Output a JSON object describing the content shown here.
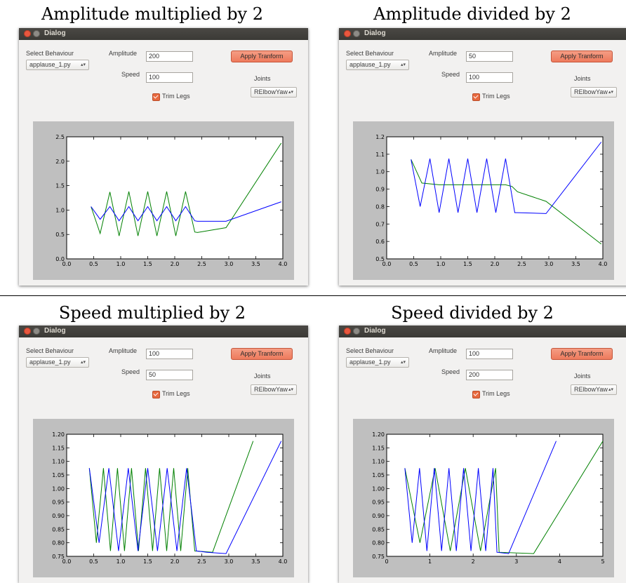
{
  "panels": [
    {
      "caption": "Amplitude multiplied by 2",
      "window_title": "Dialog",
      "select_behaviour_label": "Select Behaviour",
      "behaviour_value": "applause_1.py",
      "amplitude_label": "Amplitude",
      "amplitude_value": "200",
      "speed_label": "Speed",
      "speed_value": "100",
      "apply_label": "Apply Tranform",
      "joints_label": "Joints",
      "joint_value": "RElbowYaw",
      "trim_legs_label": "Trim Legs",
      "trim_legs_checked": true,
      "chart_data": {
        "type": "line",
        "xlim": [
          0,
          4
        ],
        "ylim": [
          0,
          2.5
        ],
        "xticks": [
          "0.0",
          "0.5",
          "1.0",
          "1.5",
          "2.0",
          "2.5",
          "3.0",
          "3.5",
          "4.0"
        ],
        "yticks": [
          "0.0",
          "0.5",
          "1.0",
          "1.5",
          "2.0",
          "2.5"
        ],
        "xtick_values": [
          0,
          0.5,
          1,
          1.5,
          2,
          2.5,
          3,
          3.5,
          4
        ],
        "ytick_values": [
          0,
          0.5,
          1,
          1.5,
          2,
          2.5
        ],
        "series": [
          {
            "color": "#008000",
            "x": [
              0.45,
              0.62,
              0.8,
              0.97,
              1.15,
              1.32,
              1.5,
              1.67,
              1.85,
              2.02,
              2.2,
              2.37,
              2.42,
              2.95,
              3.97
            ],
            "y": [
              1.07,
              0.52,
              1.37,
              0.47,
              1.38,
              0.47,
              1.38,
              0.47,
              1.38,
              0.47,
              1.38,
              0.55,
              0.54,
              0.64,
              2.37
            ]
          },
          {
            "color": "#0000ff",
            "x": [
              0.45,
              0.62,
              0.8,
              0.97,
              1.15,
              1.32,
              1.5,
              1.67,
              1.85,
              2.02,
              2.2,
              2.37,
              2.42,
              2.95,
              3.97
            ],
            "y": [
              1.07,
              0.81,
              1.07,
              0.78,
              1.07,
              0.78,
              1.07,
              0.78,
              1.07,
              0.78,
              1.07,
              0.78,
              0.77,
              0.77,
              1.17
            ]
          }
        ]
      }
    },
    {
      "caption": "Amplitude divided by 2",
      "window_title": "Dialog",
      "select_behaviour_label": "Select Behaviour",
      "behaviour_value": "applause_1.py",
      "amplitude_label": "Amplitude",
      "amplitude_value": "50",
      "speed_label": "Speed",
      "speed_value": "100",
      "apply_label": "Apply Tranform",
      "joints_label": "Joints",
      "joint_value": "RElbowYaw",
      "trim_legs_label": "Trim Legs",
      "trim_legs_checked": true,
      "chart_data": {
        "type": "line",
        "xlim": [
          0,
          4
        ],
        "ylim": [
          0.5,
          1.2
        ],
        "xticks": [
          "0.0",
          "0.5",
          "1.0",
          "1.5",
          "2.0",
          "2.5",
          "3.0",
          "3.5",
          "4.0"
        ],
        "yticks": [
          "0.5",
          "0.6",
          "0.7",
          "0.8",
          "0.9",
          "1.0",
          "1.1",
          "1.2"
        ],
        "xtick_values": [
          0,
          0.5,
          1,
          1.5,
          2,
          2.5,
          3,
          3.5,
          4
        ],
        "ytick_values": [
          0.5,
          0.6,
          0.7,
          0.8,
          0.9,
          1.0,
          1.1,
          1.2
        ],
        "series": [
          {
            "color": "#008000",
            "x": [
              0.45,
              0.65,
              0.97,
              2.2,
              2.32,
              2.42,
              2.95,
              3.97
            ],
            "y": [
              1.07,
              0.935,
              0.925,
              0.925,
              0.915,
              0.885,
              0.83,
              0.585
            ]
          },
          {
            "color": "#0000ff",
            "x": [
              0.45,
              0.62,
              0.8,
              0.97,
              1.15,
              1.32,
              1.5,
              1.67,
              1.85,
              2.02,
              2.2,
              2.37,
              2.42,
              2.95,
              3.97
            ],
            "y": [
              1.07,
              0.8,
              1.075,
              0.765,
              1.075,
              0.765,
              1.075,
              0.765,
              1.075,
              0.765,
              1.075,
              0.765,
              0.765,
              0.76,
              1.17
            ]
          }
        ]
      }
    },
    {
      "caption": "Speed multiplied by 2",
      "window_title": "Dialog",
      "select_behaviour_label": "Select Behaviour",
      "behaviour_value": "applause_1.py",
      "amplitude_label": "Amplitude",
      "amplitude_value": "100",
      "speed_label": "Speed",
      "speed_value": "50",
      "apply_label": "Apply Tranform",
      "joints_label": "Joints",
      "joint_value": "RElbowYaw",
      "trim_legs_label": "Trim Legs",
      "trim_legs_checked": true,
      "chart_data": {
        "type": "line",
        "xlim": [
          0,
          4
        ],
        "ylim": [
          0.75,
          1.2
        ],
        "xticks": [
          "0.0",
          "0.5",
          "1.0",
          "1.5",
          "2.0",
          "2.5",
          "3.0",
          "3.5",
          "4.0"
        ],
        "yticks": [
          "0.75",
          "0.80",
          "0.85",
          "0.90",
          "0.95",
          "1.00",
          "1.05",
          "1.10",
          "1.15",
          "1.20"
        ],
        "xtick_values": [
          0,
          0.5,
          1,
          1.5,
          2,
          2.5,
          3,
          3.5,
          4
        ],
        "ytick_values": [
          0.75,
          0.8,
          0.85,
          0.9,
          0.95,
          1.0,
          1.05,
          1.1,
          1.15,
          1.2
        ],
        "series": [
          {
            "color": "#008000",
            "x": [
              0.42,
              0.55,
              0.68,
              0.81,
              0.94,
              1.07,
              1.2,
              1.33,
              1.46,
              1.59,
              1.72,
              1.85,
              1.98,
              2.11,
              2.24,
              2.37,
              2.7,
              3.45
            ],
            "y": [
              1.075,
              0.8,
              1.075,
              0.77,
              1.075,
              0.77,
              1.075,
              0.77,
              1.075,
              0.77,
              1.075,
              0.77,
              1.075,
              0.77,
              1.075,
              0.77,
              0.765,
              1.175
            ]
          },
          {
            "color": "#0000ff",
            "x": [
              0.42,
              0.6,
              0.78,
              0.96,
              1.14,
              1.32,
              1.5,
              1.68,
              1.86,
              2.04,
              2.22,
              2.4,
              2.6,
              2.95,
              3.97
            ],
            "y": [
              1.075,
              0.8,
              1.075,
              0.77,
              1.075,
              0.77,
              1.075,
              0.77,
              1.075,
              0.77,
              1.075,
              0.77,
              0.765,
              0.76,
              1.175
            ]
          }
        ]
      }
    },
    {
      "caption": "Speed divided by 2",
      "window_title": "Dialog",
      "select_behaviour_label": "Select Behaviour",
      "behaviour_value": "applause_1.py",
      "amplitude_label": "Amplitude",
      "amplitude_value": "100",
      "speed_label": "Speed",
      "speed_value": "200",
      "apply_label": "Apply Tranform",
      "joints_label": "Joints",
      "joint_value": "RElbowYaw",
      "trim_legs_label": "Trim Legs",
      "trim_legs_checked": true,
      "chart_data": {
        "type": "line",
        "xlim": [
          0,
          5
        ],
        "ylim": [
          0.75,
          1.2
        ],
        "xticks": [
          "0",
          "1",
          "2",
          "3",
          "4",
          "5"
        ],
        "yticks": [
          "0.75",
          "0.80",
          "0.85",
          "0.90",
          "0.95",
          "1.00",
          "1.05",
          "1.10",
          "1.15",
          "1.20"
        ],
        "xtick_values": [
          0,
          1,
          2,
          3,
          4,
          5
        ],
        "ytick_values": [
          0.75,
          0.8,
          0.85,
          0.9,
          0.95,
          1.0,
          1.05,
          1.1,
          1.15,
          1.2
        ],
        "series": [
          {
            "color": "#008000",
            "x": [
              0.42,
              0.77,
              1.12,
              1.47,
              1.82,
              2.17,
              2.52,
              2.6,
              3.4,
              5.0
            ],
            "y": [
              1.075,
              0.8,
              1.075,
              0.77,
              1.075,
              0.77,
              1.075,
              0.765,
              0.76,
              1.175
            ]
          },
          {
            "color": "#0000ff",
            "x": [
              0.42,
              0.59,
              0.76,
              0.93,
              1.1,
              1.27,
              1.44,
              1.61,
              1.78,
              1.95,
              2.12,
              2.29,
              2.46,
              2.55,
              2.82,
              3.92
            ],
            "y": [
              1.075,
              0.8,
              1.075,
              0.77,
              1.075,
              0.77,
              1.075,
              0.77,
              1.075,
              0.77,
              1.075,
              0.77,
              1.075,
              0.765,
              0.76,
              1.175
            ]
          }
        ]
      }
    }
  ]
}
